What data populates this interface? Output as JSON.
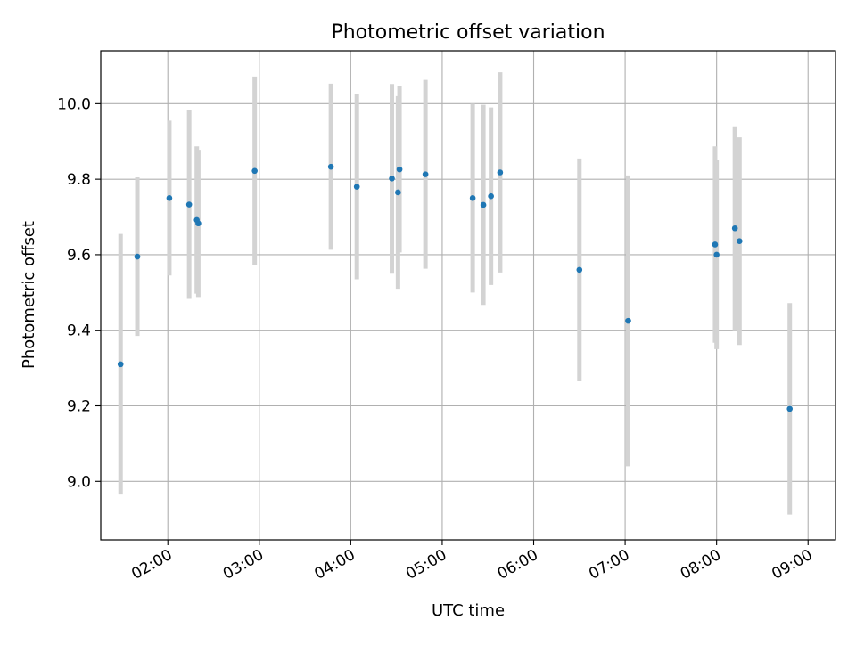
{
  "chart_data": {
    "type": "scatter",
    "title": "Photometric offset variation",
    "xlabel": "UTC time",
    "ylabel": "Photometric offset",
    "x_type": "time",
    "xlim": [
      "01:16",
      "09:18"
    ],
    "ylim": [
      8.845,
      10.14
    ],
    "x_ticks": [
      "02:00",
      "03:00",
      "04:00",
      "05:00",
      "06:00",
      "07:00",
      "08:00",
      "09:00"
    ],
    "y_ticks": [
      9.0,
      9.2,
      9.4,
      9.6,
      9.8,
      10.0
    ],
    "grid": true,
    "legend": "none",
    "point_color": "#1f77b4",
    "error_bar_color": "#d3d3d3",
    "points": [
      {
        "x": "01:29",
        "y": 9.31,
        "err": 0.345
      },
      {
        "x": "01:40",
        "y": 9.595,
        "err": 0.21
      },
      {
        "x": "02:01",
        "y": 9.75,
        "err": 0.205
      },
      {
        "x": "02:14",
        "y": 9.733,
        "err": 0.25
      },
      {
        "x": "02:19",
        "y": 9.692,
        "err": 0.195
      },
      {
        "x": "02:20",
        "y": 9.683,
        "err": 0.195
      },
      {
        "x": "02:57",
        "y": 9.822,
        "err": 0.25
      },
      {
        "x": "03:47",
        "y": 9.833,
        "err": 0.22
      },
      {
        "x": "04:04",
        "y": 9.78,
        "err": 0.245
      },
      {
        "x": "04:27",
        "y": 9.802,
        "err": 0.25
      },
      {
        "x": "04:31",
        "y": 9.765,
        "err": 0.255
      },
      {
        "x": "04:32",
        "y": 9.826,
        "err": 0.22
      },
      {
        "x": "04:49",
        "y": 9.813,
        "err": 0.25
      },
      {
        "x": "05:20",
        "y": 9.75,
        "err": 0.25
      },
      {
        "x": "05:27",
        "y": 9.732,
        "err": 0.265
      },
      {
        "x": "05:32",
        "y": 9.755,
        "err": 0.235
      },
      {
        "x": "05:38",
        "y": 9.818,
        "err": 0.265
      },
      {
        "x": "06:30",
        "y": 9.56,
        "err": 0.295
      },
      {
        "x": "07:02",
        "y": 9.425,
        "err": 0.385
      },
      {
        "x": "07:59",
        "y": 9.627,
        "err": 0.26
      },
      {
        "x": "08:00",
        "y": 9.6,
        "err": 0.25
      },
      {
        "x": "08:12",
        "y": 9.67,
        "err": 0.27
      },
      {
        "x": "08:15",
        "y": 9.636,
        "err": 0.275
      },
      {
        "x": "08:48",
        "y": 9.192,
        "err": 0.28
      }
    ]
  }
}
